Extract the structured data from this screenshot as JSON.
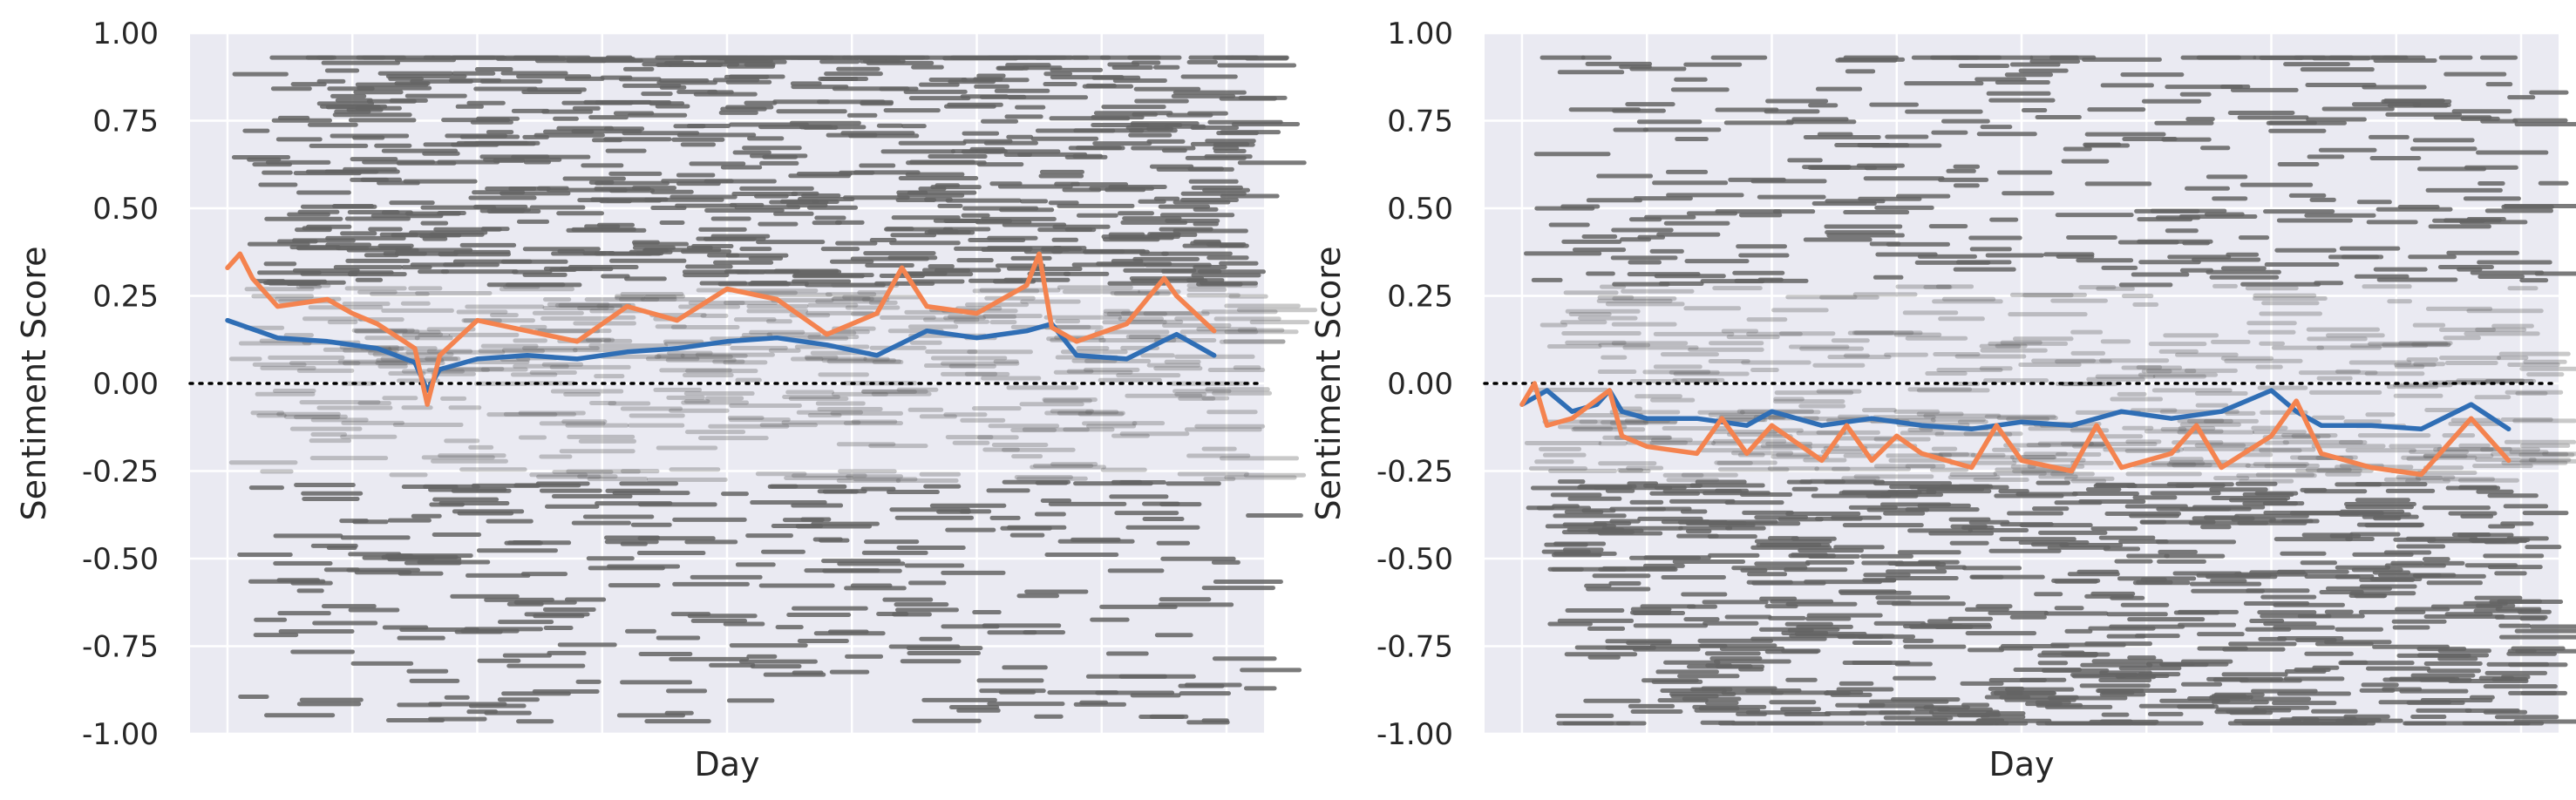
{
  "colors": {
    "panel_bg": "#eaeaf2",
    "grid": "#ffffff",
    "scatter": "#646464",
    "series_mean": "#2f6eb5",
    "series_alt": "#f4834f",
    "zero_line": "#000000",
    "text": "#262626"
  },
  "chart_data": [
    {
      "type": "scatter",
      "title": "",
      "xlabel": "Day",
      "ylabel": "Sentiment Score",
      "ylim": [
        -1.0,
        1.0
      ],
      "yticks": [
        "1.00",
        "0.75",
        "0.50",
        "0.25",
        "0.00",
        "-0.25",
        "-0.50",
        "-0.75",
        "-1.00"
      ],
      "ytick_values": [
        1.0,
        0.75,
        0.5,
        0.25,
        0.0,
        -0.25,
        -0.5,
        -0.75,
        -1.0
      ],
      "xlim": [
        -3,
        83
      ],
      "x_gridlines": [
        0,
        10,
        20,
        30,
        40,
        50,
        60,
        70,
        80
      ],
      "x_tick_labels_shown": false,
      "grid": true,
      "reference_line": {
        "y": 0.0,
        "style": "dotted"
      },
      "scatter": {
        "n_days": 80,
        "positive_share": 0.7,
        "positive_center": 0.5,
        "negative_center": -0.5,
        "seed": 11
      },
      "series": [
        {
          "color_key": "series_mean",
          "x": [
            0,
            4,
            8,
            12,
            15,
            16,
            17,
            20,
            24,
            28,
            32,
            36,
            40,
            44,
            48,
            52,
            56,
            60,
            64,
            66,
            68,
            72,
            76,
            79
          ],
          "y": [
            0.18,
            0.13,
            0.12,
            0.1,
            0.06,
            -0.02,
            0.04,
            0.07,
            0.08,
            0.07,
            0.09,
            0.1,
            0.12,
            0.13,
            0.11,
            0.08,
            0.15,
            0.13,
            0.15,
            0.17,
            0.08,
            0.07,
            0.14,
            0.08
          ]
        },
        {
          "color_key": "series_alt",
          "x": [
            0,
            1,
            2,
            4,
            8,
            10,
            12,
            15,
            16,
            17,
            20,
            24,
            28,
            32,
            36,
            40,
            44,
            48,
            52,
            54,
            56,
            60,
            64,
            65,
            66,
            68,
            72,
            75,
            76,
            79
          ],
          "y": [
            0.33,
            0.37,
            0.3,
            0.22,
            0.24,
            0.2,
            0.17,
            0.1,
            -0.06,
            0.08,
            0.18,
            0.15,
            0.12,
            0.22,
            0.18,
            0.27,
            0.24,
            0.14,
            0.2,
            0.33,
            0.22,
            0.2,
            0.28,
            0.37,
            0.16,
            0.12,
            0.17,
            0.3,
            0.25,
            0.15
          ]
        }
      ]
    },
    {
      "type": "scatter",
      "title": "",
      "xlabel": "Day",
      "ylabel": "Sentiment Score",
      "ylim": [
        -1.0,
        1.0
      ],
      "yticks": [
        "1.00",
        "0.75",
        "0.50",
        "0.25",
        "0.00",
        "-0.25",
        "-0.50",
        "-0.75",
        "-1.00"
      ],
      "ytick_values": [
        1.0,
        0.75,
        0.5,
        0.25,
        0.0,
        -0.25,
        -0.5,
        -0.75,
        -1.0
      ],
      "xlim": [
        -3,
        83
      ],
      "x_gridlines": [
        0,
        10,
        20,
        30,
        40,
        50,
        60,
        70,
        80
      ],
      "x_tick_labels_shown": false,
      "grid": true,
      "reference_line": {
        "y": 0.0,
        "style": "dotted"
      },
      "scatter": {
        "n_days": 80,
        "positive_share": 0.3,
        "positive_center": 0.5,
        "negative_center": -0.55,
        "seed": 29
      },
      "series": [
        {
          "color_key": "series_mean",
          "x": [
            0,
            2,
            4,
            6,
            7,
            8,
            10,
            14,
            18,
            20,
            24,
            28,
            32,
            36,
            40,
            44,
            48,
            52,
            56,
            58,
            60,
            62,
            64,
            68,
            72,
            76,
            79
          ],
          "y": [
            -0.06,
            -0.02,
            -0.08,
            -0.06,
            -0.02,
            -0.08,
            -0.1,
            -0.1,
            -0.12,
            -0.08,
            -0.12,
            -0.1,
            -0.12,
            -0.13,
            -0.11,
            -0.12,
            -0.08,
            -0.1,
            -0.08,
            -0.05,
            -0.02,
            -0.08,
            -0.12,
            -0.12,
            -0.13,
            -0.06,
            -0.13
          ]
        },
        {
          "color_key": "series_alt",
          "x": [
            0,
            1,
            2,
            4,
            7,
            8,
            10,
            14,
            16,
            18,
            20,
            24,
            26,
            28,
            30,
            32,
            36,
            38,
            40,
            44,
            46,
            48,
            52,
            54,
            56,
            60,
            62,
            64,
            68,
            72,
            76,
            79
          ],
          "y": [
            -0.06,
            0.0,
            -0.12,
            -0.1,
            -0.02,
            -0.15,
            -0.18,
            -0.2,
            -0.1,
            -0.2,
            -0.12,
            -0.22,
            -0.12,
            -0.22,
            -0.15,
            -0.2,
            -0.24,
            -0.12,
            -0.22,
            -0.25,
            -0.12,
            -0.24,
            -0.2,
            -0.12,
            -0.24,
            -0.15,
            -0.05,
            -0.2,
            -0.24,
            -0.26,
            -0.1,
            -0.22
          ]
        }
      ]
    }
  ]
}
